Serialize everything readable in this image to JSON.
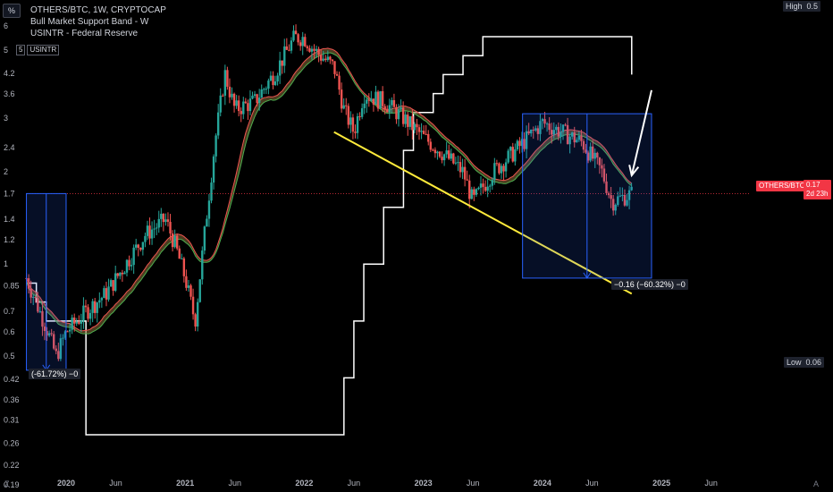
{
  "pct_button": "%",
  "legend": {
    "symbol": "OTHERS/BTC, 1W, CRYPTOCAP",
    "indicator_1": "Bull Market Support Band - W",
    "indicator_2": "USINTR - Federal Reserve"
  },
  "usintr_tag": {
    "value": "5",
    "name": "USINTR"
  },
  "high_badge": {
    "label": "High",
    "value": "0.5"
  },
  "low_badge": {
    "label": "Low",
    "value": "0.06"
  },
  "price_badge": {
    "symbol": "OTHERS/BTC",
    "value": "0.17",
    "countdown": "2d 23h"
  },
  "measure_left": "(-61.72%) −0",
  "measure_right": "−0.16 (−60.32%) −0",
  "footer": {
    "z_label": "Z",
    "a_label": "A"
  },
  "colors": {
    "background": "#000000",
    "candle_up": "#26a69a",
    "candle_down": "#ef5350",
    "band_fill": "#8a6d3b",
    "rate_line": "#ffffff",
    "trendline": "#ffeb3b",
    "measure_box": "#2962ff",
    "price_badge": "#f23645"
  },
  "chart_data": {
    "type": "candlestick",
    "log_scale": true,
    "y_tick_labels": [
      "6",
      "5",
      "4.2",
      "3.6",
      "3",
      "2.4",
      "2",
      "1.7",
      "1.4",
      "1.2",
      "1",
      "0.85",
      "0.7",
      "0.6",
      "0.5",
      "0.42",
      "0.36",
      "0.31",
      "0.26",
      "0.22",
      "0.19"
    ],
    "x_tick_labels": [
      "2020",
      "Jun",
      "2021",
      "Jun",
      "2022",
      "Jun",
      "2023",
      "Jun",
      "2024",
      "Jun",
      "2025",
      "Jun"
    ],
    "price_path": [
      [
        "2019-09",
        0.9
      ],
      [
        "2019-11",
        0.62
      ],
      [
        "2019-12",
        0.5
      ],
      [
        "2020-01",
        0.6
      ],
      [
        "2020-03",
        0.7
      ],
      [
        "2020-05",
        0.8
      ],
      [
        "2020-07",
        1.0
      ],
      [
        "2020-09",
        1.25
      ],
      [
        "2020-11",
        1.4
      ],
      [
        "2020-12",
        1.15
      ],
      [
        "2021-01",
        0.9
      ],
      [
        "2021-02",
        0.65
      ],
      [
        "2021-03",
        1.3
      ],
      [
        "2021-04",
        2.5
      ],
      [
        "2021-05",
        4.2
      ],
      [
        "2021-06",
        3.2
      ],
      [
        "2021-08",
        3.4
      ],
      [
        "2021-10",
        4.2
      ],
      [
        "2021-12",
        5.5
      ],
      [
        "2022-01",
        5.5
      ],
      [
        "2022-02",
        5.0
      ],
      [
        "2022-04",
        4.4
      ],
      [
        "2022-05",
        3.2
      ],
      [
        "2022-06",
        2.7
      ],
      [
        "2022-07",
        3.6
      ],
      [
        "2022-09",
        3.4
      ],
      [
        "2022-11",
        3.0
      ],
      [
        "2023-01",
        2.6
      ],
      [
        "2023-03",
        2.3
      ],
      [
        "2023-05",
        2.0
      ],
      [
        "2023-06",
        1.6
      ],
      [
        "2023-08",
        2.0
      ],
      [
        "2023-10",
        2.3
      ],
      [
        "2024-01",
        2.9
      ],
      [
        "2024-03",
        2.7
      ],
      [
        "2024-05",
        2.5
      ],
      [
        "2024-07",
        2.0
      ],
      [
        "2024-08",
        1.6
      ],
      [
        "2024-10",
        1.7
      ]
    ],
    "rate_series": {
      "name": "USINTR - Federal Reserve",
      "points": [
        [
          "2019-09",
          2.25
        ],
        [
          "2019-10",
          2.0
        ],
        [
          "2019-11",
          1.75
        ],
        [
          "2020-02",
          1.75
        ],
        [
          "2020-03",
          0.25
        ],
        [
          "2022-03",
          0.25
        ],
        [
          "2022-05",
          1.0
        ],
        [
          "2022-06",
          1.75
        ],
        [
          "2022-07",
          2.5
        ],
        [
          "2022-09",
          3.25
        ],
        [
          "2022-11",
          4.0
        ],
        [
          "2022-12",
          4.5
        ],
        [
          "2023-02",
          4.75
        ],
        [
          "2023-03",
          5.0
        ],
        [
          "2023-05",
          5.25
        ],
        [
          "2023-07",
          5.5
        ],
        [
          "2024-09",
          5.5
        ],
        [
          "2024-10",
          5.0
        ]
      ]
    },
    "annotations": [
      {
        "type": "trendline",
        "from": [
          "2022-04",
          2.7
        ],
        "to": [
          "2024-10",
          0.8
        ]
      },
      {
        "type": "measure",
        "from": [
          "2019-09",
          1.7
        ],
        "to": [
          "2020-01",
          0.45
        ],
        "label": "(-61.72%) −0"
      },
      {
        "type": "measure",
        "from": [
          "2023-11",
          3.1
        ],
        "to": [
          "2024-12",
          0.9
        ],
        "label": "−0.16 (−60.32%) −0"
      },
      {
        "type": "arrow",
        "from": [
          "2024-12",
          3.7
        ],
        "to": [
          "2024-10",
          1.95
        ]
      }
    ]
  }
}
